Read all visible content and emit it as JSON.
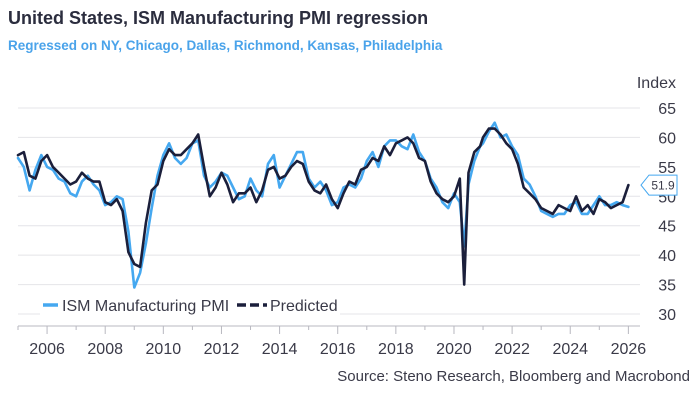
{
  "title": "United States, ISM Manufacturing PMI regression",
  "subtitle": "Regressed on NY, Chicago, Dallas, Richmond, Kansas, Philadelphia",
  "source": "Source: Steno Research, Bloomberg and Macrobond",
  "colors": {
    "actual": "#45a8f0",
    "predicted": "#1b1f3b",
    "grid": "#e4e4e8",
    "badge_border": "#45a8f0"
  },
  "chart_data": {
    "type": "line",
    "ylabel": "Index",
    "ylim": [
      30,
      65
    ],
    "yticks": [
      30,
      35,
      40,
      45,
      50,
      55,
      60,
      65
    ],
    "xlim": [
      2005.0,
      2026.4
    ],
    "xticks": [
      "2006",
      "2008",
      "2010",
      "2012",
      "2014",
      "2016",
      "2018",
      "2020",
      "2022",
      "2024",
      "2026"
    ],
    "grid": "horizontal",
    "legend_position": "bottom-left",
    "last_value_label": "51.9",
    "series": [
      {
        "name": "ISM Manufacturing PMI",
        "style": "solid",
        "x": [
          2005.0,
          2005.2,
          2005.4,
          2005.6,
          2005.8,
          2006.0,
          2006.2,
          2006.4,
          2006.6,
          2006.8,
          2007.0,
          2007.2,
          2007.4,
          2007.6,
          2007.8,
          2008.0,
          2008.2,
          2008.4,
          2008.6,
          2008.8,
          2009.0,
          2009.2,
          2009.4,
          2009.6,
          2009.8,
          2010.0,
          2010.2,
          2010.4,
          2010.6,
          2010.8,
          2011.0,
          2011.2,
          2011.4,
          2011.6,
          2011.8,
          2012.0,
          2012.2,
          2012.4,
          2012.6,
          2012.8,
          2013.0,
          2013.2,
          2013.4,
          2013.6,
          2013.8,
          2014.0,
          2014.2,
          2014.4,
          2014.6,
          2014.8,
          2015.0,
          2015.2,
          2015.4,
          2015.6,
          2015.8,
          2016.0,
          2016.2,
          2016.4,
          2016.6,
          2016.8,
          2017.0,
          2017.2,
          2017.4,
          2017.6,
          2017.8,
          2018.0,
          2018.2,
          2018.4,
          2018.6,
          2018.8,
          2019.0,
          2019.2,
          2019.4,
          2019.6,
          2019.8,
          2020.0,
          2020.2,
          2020.35,
          2020.5,
          2020.7,
          2020.9,
          2021.0,
          2021.2,
          2021.4,
          2021.6,
          2021.8,
          2022.0,
          2022.2,
          2022.4,
          2022.6,
          2022.8,
          2023.0,
          2023.2,
          2023.4,
          2023.6,
          2023.8,
          2024.0,
          2024.2,
          2024.4,
          2024.6,
          2024.8,
          2025.0,
          2025.2,
          2025.4,
          2025.6,
          2025.8,
          2026.0
        ],
        "values": [
          56.5,
          55.0,
          51.0,
          54.5,
          57.0,
          55.0,
          54.5,
          53.0,
          52.5,
          50.5,
          50.0,
          52.5,
          53.5,
          52.0,
          51.0,
          48.5,
          49.0,
          50.0,
          49.5,
          44.0,
          34.5,
          37.0,
          42.0,
          48.0,
          53.5,
          57.0,
          59.0,
          56.5,
          55.5,
          56.5,
          59.0,
          59.5,
          53.5,
          51.5,
          52.5,
          54.0,
          53.5,
          51.5,
          49.5,
          50.0,
          53.0,
          51.0,
          50.0,
          55.5,
          57.0,
          51.5,
          53.5,
          55.5,
          57.5,
          57.5,
          53.0,
          51.5,
          52.5,
          51.0,
          48.5,
          49.0,
          51.5,
          52.0,
          51.5,
          53.0,
          56.0,
          57.5,
          55.0,
          58.5,
          59.5,
          59.5,
          58.5,
          58.0,
          60.5,
          57.5,
          56.0,
          53.0,
          51.5,
          49.0,
          48.0,
          50.5,
          49.0,
          41.5,
          52.0,
          56.0,
          58.5,
          59.0,
          61.0,
          62.5,
          60.0,
          60.5,
          58.5,
          57.0,
          53.0,
          52.0,
          50.0,
          47.5,
          47.0,
          46.5,
          47.0,
          47.0,
          48.5,
          49.0,
          47.0,
          47.0,
          48.5,
          50.0,
          48.5,
          48.5,
          49.0,
          48.5,
          48.2
        ]
      },
      {
        "name": "Predicted",
        "style": "dashed",
        "x": [
          2005.0,
          2005.2,
          2005.4,
          2005.6,
          2005.8,
          2006.0,
          2006.2,
          2006.4,
          2006.6,
          2006.8,
          2007.0,
          2007.2,
          2007.4,
          2007.6,
          2007.8,
          2008.0,
          2008.2,
          2008.4,
          2008.6,
          2008.8,
          2009.0,
          2009.2,
          2009.4,
          2009.6,
          2009.8,
          2010.0,
          2010.2,
          2010.4,
          2010.6,
          2010.8,
          2011.0,
          2011.2,
          2011.4,
          2011.6,
          2011.8,
          2012.0,
          2012.2,
          2012.4,
          2012.6,
          2012.8,
          2013.0,
          2013.2,
          2013.4,
          2013.6,
          2013.8,
          2014.0,
          2014.2,
          2014.4,
          2014.6,
          2014.8,
          2015.0,
          2015.2,
          2015.4,
          2015.6,
          2015.8,
          2016.0,
          2016.2,
          2016.4,
          2016.6,
          2016.8,
          2017.0,
          2017.2,
          2017.4,
          2017.6,
          2017.8,
          2018.0,
          2018.2,
          2018.4,
          2018.6,
          2018.8,
          2019.0,
          2019.2,
          2019.4,
          2019.6,
          2019.8,
          2020.0,
          2020.2,
          2020.35,
          2020.5,
          2020.7,
          2020.9,
          2021.0,
          2021.2,
          2021.4,
          2021.6,
          2021.8,
          2022.0,
          2022.2,
          2022.4,
          2022.6,
          2022.8,
          2023.0,
          2023.2,
          2023.4,
          2023.6,
          2023.8,
          2024.0,
          2024.2,
          2024.4,
          2024.6,
          2024.8,
          2025.0,
          2025.2,
          2025.4,
          2025.6,
          2025.8,
          2026.0
        ],
        "values": [
          57.0,
          57.5,
          53.5,
          53.0,
          56.0,
          57.0,
          55.0,
          54.0,
          53.0,
          52.0,
          52.5,
          54.0,
          53.0,
          52.5,
          52.5,
          49.0,
          48.5,
          49.5,
          47.5,
          40.5,
          38.5,
          38.0,
          45.5,
          51.0,
          52.0,
          56.0,
          58.0,
          57.0,
          57.0,
          58.0,
          59.0,
          60.5,
          55.0,
          50.0,
          51.5,
          54.0,
          52.0,
          49.0,
          50.5,
          50.5,
          51.5,
          49.0,
          51.0,
          54.5,
          55.0,
          53.0,
          53.5,
          55.0,
          56.0,
          55.5,
          52.5,
          51.0,
          50.5,
          52.0,
          49.5,
          48.0,
          50.5,
          52.5,
          52.0,
          54.5,
          55.0,
          56.5,
          56.0,
          58.5,
          57.0,
          59.0,
          59.5,
          60.0,
          59.0,
          56.5,
          56.0,
          52.5,
          50.5,
          49.5,
          49.0,
          50.0,
          53.0,
          35.0,
          54.0,
          57.5,
          58.5,
          60.0,
          61.5,
          61.5,
          60.5,
          59.0,
          58.0,
          55.5,
          51.5,
          50.5,
          49.5,
          48.0,
          47.5,
          47.0,
          48.5,
          48.0,
          47.5,
          50.0,
          47.5,
          48.5,
          47.0,
          49.5,
          49.0,
          48.0,
          48.5,
          49.0,
          51.9
        ]
      }
    ]
  }
}
